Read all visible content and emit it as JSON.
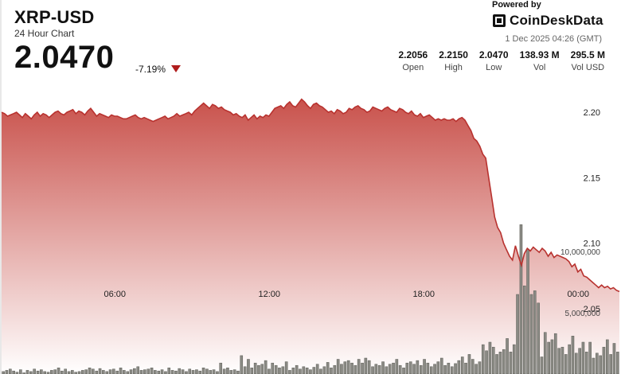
{
  "header": {
    "title": "XRP-USD",
    "subtitle": "24 Hour Chart",
    "price": "2.0470",
    "change": "-7.19%",
    "powered_by": "Powered by",
    "brand": "CoinDeskData",
    "datetime": "1 Dec 2025 04:26 (GMT)"
  },
  "stats": [
    {
      "value": "2.2056",
      "label": "Open"
    },
    {
      "value": "2.2150",
      "label": "High"
    },
    {
      "value": "2.0470",
      "label": "Low"
    },
    {
      "value": "138.93 M",
      "label": "Vol"
    },
    {
      "value": "295.5 M",
      "label": "Vol USD"
    }
  ],
  "colors": {
    "line": "#b8322f",
    "fill_top": "#c9524c",
    "fill_bottom": "#ffffff",
    "volume_bar": "#8a8a84",
    "down_arrow": "#b01c1c"
  },
  "chart_data": {
    "type": "area",
    "x_labels": [
      "06:00",
      "12:00",
      "18:00",
      "00:00"
    ],
    "x_label_positions_hours": [
      4.4,
      10.4,
      16.4,
      22.4
    ],
    "hours_span": 24,
    "y_ticks": [
      "2.20",
      "2.15",
      "2.10",
      "2.05"
    ],
    "y_tick_values": [
      2.2,
      2.15,
      2.1,
      2.05
    ],
    "ylim": [
      2.0,
      2.225
    ],
    "price": [
      2.2,
      2.199,
      2.197,
      2.198,
      2.199,
      2.2,
      2.198,
      2.196,
      2.199,
      2.197,
      2.195,
      2.198,
      2.2,
      2.197,
      2.199,
      2.198,
      2.196,
      2.198,
      2.2,
      2.201,
      2.199,
      2.198,
      2.2,
      2.201,
      2.202,
      2.199,
      2.201,
      2.2,
      2.198,
      2.201,
      2.203,
      2.2,
      2.197,
      2.199,
      2.198,
      2.197,
      2.196,
      2.198,
      2.197,
      2.197,
      2.196,
      2.195,
      2.195,
      2.196,
      2.197,
      2.198,
      2.196,
      2.195,
      2.196,
      2.195,
      2.194,
      2.193,
      2.194,
      2.195,
      2.196,
      2.197,
      2.195,
      2.196,
      2.197,
      2.199,
      2.197,
      2.198,
      2.199,
      2.2,
      2.198,
      2.201,
      2.203,
      2.205,
      2.207,
      2.205,
      2.203,
      2.206,
      2.205,
      2.203,
      2.204,
      2.202,
      2.201,
      2.2,
      2.198,
      2.199,
      2.197,
      2.196,
      2.198,
      2.194,
      2.196,
      2.198,
      2.195,
      2.197,
      2.196,
      2.198,
      2.197,
      2.2,
      2.203,
      2.204,
      2.205,
      2.203,
      2.206,
      2.208,
      2.205,
      2.204,
      2.207,
      2.21,
      2.208,
      2.205,
      2.203,
      2.206,
      2.207,
      2.205,
      2.204,
      2.202,
      2.2,
      2.201,
      2.199,
      2.202,
      2.201,
      2.199,
      2.2,
      2.203,
      2.202,
      2.204,
      2.205,
      2.203,
      2.202,
      2.2,
      2.201,
      2.204,
      2.203,
      2.202,
      2.201,
      2.203,
      2.204,
      2.202,
      2.201,
      2.2,
      2.203,
      2.202,
      2.2,
      2.199,
      2.201,
      2.198,
      2.197,
      2.199,
      2.196,
      2.197,
      2.198,
      2.196,
      2.194,
      2.195,
      2.194,
      2.195,
      2.194,
      2.194,
      2.195,
      2.193,
      2.195,
      2.196,
      2.194,
      2.19,
      2.186,
      2.18,
      2.178,
      2.174,
      2.168,
      2.165,
      2.15,
      2.135,
      2.12,
      2.112,
      2.108,
      2.1,
      2.095,
      2.09,
      2.087,
      2.098,
      2.09,
      2.083,
      2.092,
      2.096,
      2.094,
      2.097,
      2.095,
      2.093,
      2.096,
      2.094,
      2.09,
      2.093,
      2.089,
      2.091,
      2.09,
      2.089,
      2.088,
      2.086,
      2.082,
      2.084,
      2.078,
      2.08,
      2.075,
      2.074,
      2.072,
      2.07,
      2.068,
      2.066,
      2.068,
      2.066,
      2.067,
      2.065,
      2.066,
      2.064,
      2.063
    ],
    "volume_ticks": [
      "10,000,000",
      "5,000,000"
    ],
    "volume_tick_values": [
      10000000,
      5000000
    ],
    "volume_max": 13000000,
    "volume": [
      200000,
      300000,
      400000,
      250000,
      150000,
      350000,
      100000,
      300000,
      200000,
      400000,
      250000,
      350000,
      200000,
      150000,
      300000,
      350000,
      500000,
      250000,
      400000,
      200000,
      300000,
      150000,
      200000,
      300000,
      350000,
      500000,
      400000,
      250000,
      450000,
      300000,
      200000,
      350000,
      400000,
      250000,
      500000,
      300000,
      200000,
      350000,
      450000,
      600000,
      300000,
      350000,
      400000,
      500000,
      300000,
      250000,
      350000,
      200000,
      500000,
      300000,
      250000,
      450000,
      350000,
      200000,
      400000,
      300000,
      350000,
      250000,
      500000,
      400000,
      300000,
      350000,
      200000,
      900000,
      400000,
      500000,
      300000,
      350000,
      250000,
      1500000,
      600000,
      1200000,
      500000,
      900000,
      700000,
      800000,
      1100000,
      400000,
      900000,
      700000,
      500000,
      600000,
      1000000,
      300000,
      500000,
      700000,
      400000,
      600000,
      500000,
      350000,
      550000,
      800000,
      400000,
      600000,
      950000,
      500000,
      700000,
      1200000,
      800000,
      1000000,
      1100000,
      900000,
      700000,
      1200000,
      900000,
      1300000,
      1100000,
      600000,
      800000,
      700000,
      1000000,
      600000,
      800000,
      900000,
      1200000,
      700000,
      500000,
      900000,
      1000000,
      800000,
      1100000,
      700000,
      1200000,
      900000,
      600000,
      800000,
      1000000,
      1300000,
      700000,
      900000,
      600000,
      850000,
      1100000,
      1400000,
      900000,
      1600000,
      1200000,
      800000,
      1000000,
      2400000,
      1900000,
      2600000,
      2200000,
      1600000,
      1800000,
      2000000,
      2900000,
      1800000,
      2400000,
      6500000,
      12200000,
      7200000,
      10200000,
      6500000,
      6800000,
      5800000,
      1400000,
      3400000,
      2600000,
      2800000,
      3300000,
      2100000,
      2200000,
      1600000,
      2400000,
      3100000,
      1700000,
      2100000,
      2600000,
      1800000,
      2600000,
      1300000,
      1700000,
      1500000,
      2200000,
      2800000,
      1600000,
      2500000,
      1800000
    ]
  }
}
